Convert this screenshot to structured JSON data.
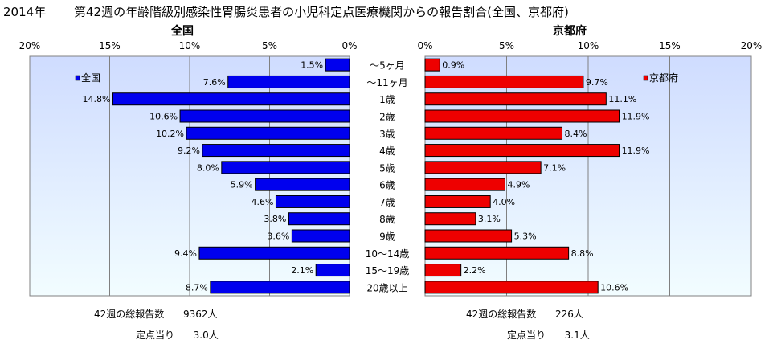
{
  "title": {
    "year": "2014年",
    "text": "第42週の年齢階級別感染性胃腸炎患者の小児科定点医療機関からの報告割合(全国、京都府)"
  },
  "colors": {
    "national": "#0000ee",
    "kyoto": "#ee0000",
    "panel_bg_top": "#cfdcff",
    "panel_bg_bottom": "#f2fdff"
  },
  "chart_data": [
    {
      "type": "bar",
      "title": "全国",
      "orientation": "horizontal-reversed",
      "xlim": [
        0,
        20
      ],
      "ticks": [
        "20%",
        "15%",
        "10%",
        "5%",
        "0%"
      ],
      "categories": [
        "～5ヶ月",
        "～11ヶ月",
        "1歳",
        "2歳",
        "3歳",
        "4歳",
        "5歳",
        "6歳",
        "7歳",
        "8歳",
        "9歳",
        "10～14歳",
        "15～19歳",
        "20歳以上"
      ],
      "series": [
        {
          "name": "全国",
          "values": [
            1.5,
            7.6,
            14.8,
            10.6,
            10.2,
            9.2,
            8.0,
            5.9,
            4.6,
            3.8,
            3.6,
            9.4,
            2.1,
            8.7
          ]
        }
      ],
      "data_labels": [
        "1.5%",
        "7.6%",
        "14.8%",
        "10.6%",
        "10.2%",
        "9.2%",
        "8.0%",
        "5.9%",
        "4.6%",
        "3.8%",
        "3.6%",
        "9.4%",
        "2.1%",
        "8.7%"
      ],
      "legend": "top-left",
      "grid": true
    },
    {
      "type": "bar",
      "title": "京都府",
      "orientation": "horizontal",
      "xlim": [
        0,
        20
      ],
      "ticks": [
        "0%",
        "5%",
        "10%",
        "15%",
        "20%"
      ],
      "categories": [
        "～5ヶ月",
        "～11ヶ月",
        "1歳",
        "2歳",
        "3歳",
        "4歳",
        "5歳",
        "6歳",
        "7歳",
        "8歳",
        "9歳",
        "10～14歳",
        "15～19歳",
        "20歳以上"
      ],
      "series": [
        {
          "name": "京都府",
          "values": [
            0.9,
            9.7,
            11.1,
            11.9,
            8.4,
            11.9,
            7.1,
            4.9,
            4.0,
            3.1,
            5.3,
            8.8,
            2.2,
            10.6
          ]
        }
      ],
      "data_labels": [
        "0.9%",
        "9.7%",
        "11.1%",
        "11.9%",
        "8.4%",
        "11.9%",
        "7.1%",
        "4.9%",
        "4.0%",
        "3.1%",
        "5.3%",
        "8.8%",
        "2.2%",
        "10.6%"
      ],
      "legend": "top-right",
      "grid": true
    }
  ],
  "stats": {
    "national": {
      "total_label": "42週の総報告数",
      "total_value": "9362人",
      "per_label": "定点当り",
      "per_value": "3.0人"
    },
    "kyoto": {
      "total_label": "42週の総報告数",
      "total_value": "226人",
      "per_label": "定点当り",
      "per_value": "3.1人"
    }
  }
}
